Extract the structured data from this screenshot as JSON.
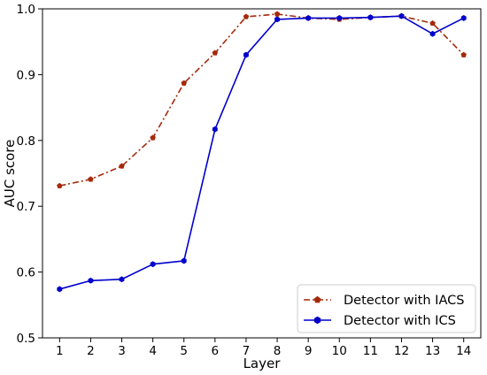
{
  "chart_data": {
    "type": "line",
    "title": "",
    "xlabel": "Layer",
    "ylabel": "AUC score",
    "x": [
      1,
      2,
      3,
      4,
      5,
      6,
      7,
      8,
      9,
      10,
      11,
      12,
      13,
      14
    ],
    "x_ticks": [
      "1",
      "2",
      "3",
      "4",
      "5",
      "6",
      "7",
      "8",
      "9",
      "10",
      "11",
      "12",
      "13",
      "14"
    ],
    "xlim": [
      0.45,
      14.55
    ],
    "ylim": [
      0.5,
      1.0
    ],
    "y_ticks": [
      "0.5",
      "0.6",
      "0.7",
      "0.8",
      "0.9",
      "1.0"
    ],
    "y_tick_values": [
      0.5,
      0.6,
      0.7,
      0.8,
      0.9,
      1.0
    ],
    "grid": false,
    "legend_position": "lower-right",
    "series": [
      {
        "name": "Detector with IACS",
        "color": "#a52a0a",
        "line_style": "dash-dot",
        "marker": "pentagon",
        "values": [
          0.731,
          0.741,
          0.761,
          0.804,
          0.887,
          0.933,
          0.988,
          0.992,
          0.986,
          0.984,
          0.987,
          0.989,
          0.978,
          0.93
        ]
      },
      {
        "name": "Detector with ICS",
        "color": "#0000cc",
        "line_style": "solid",
        "marker": "hexagon",
        "values": [
          0.574,
          0.587,
          0.589,
          0.612,
          0.617,
          0.817,
          0.93,
          0.984,
          0.986,
          0.986,
          0.987,
          0.989,
          0.962,
          0.986
        ]
      }
    ]
  }
}
